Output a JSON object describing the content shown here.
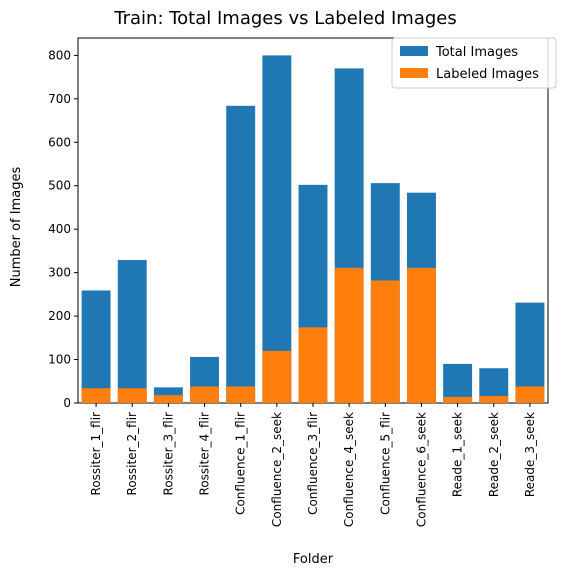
{
  "chart_data": {
    "type": "bar",
    "title": "Train: Total Images vs Labeled Images",
    "xlabel": "Folder",
    "ylabel": "Number of Images",
    "categories": [
      "Rossiter_1_flir",
      "Rossiter_2_flir",
      "Rossiter_3_flir",
      "Rossiter_4_flir",
      "Confluence_1_flir",
      "Confluence_2_seek",
      "Confluence_3_flir",
      "Confluence_4_seek",
      "Confluence_5_flir",
      "Confluence_6_seek",
      "Reade_1_seek",
      "Reade_2_seek",
      "Reade_3_seek"
    ],
    "series": [
      {
        "name": "Total Images",
        "color": "#1f77b4",
        "values": [
          259,
          329,
          36,
          106,
          684,
          800,
          502,
          770,
          506,
          484,
          90,
          80,
          231
        ]
      },
      {
        "name": "Labeled Images",
        "color": "#ff7f0e",
        "values": [
          34,
          34,
          18,
          38,
          38,
          120,
          174,
          311,
          282,
          311,
          14,
          16,
          38
        ]
      }
    ],
    "ylim": [
      0,
      840
    ],
    "yticks": [
      0,
      100,
      200,
      300,
      400,
      500,
      600,
      700,
      800
    ],
    "grid": false,
    "legend_position": "top-right"
  }
}
